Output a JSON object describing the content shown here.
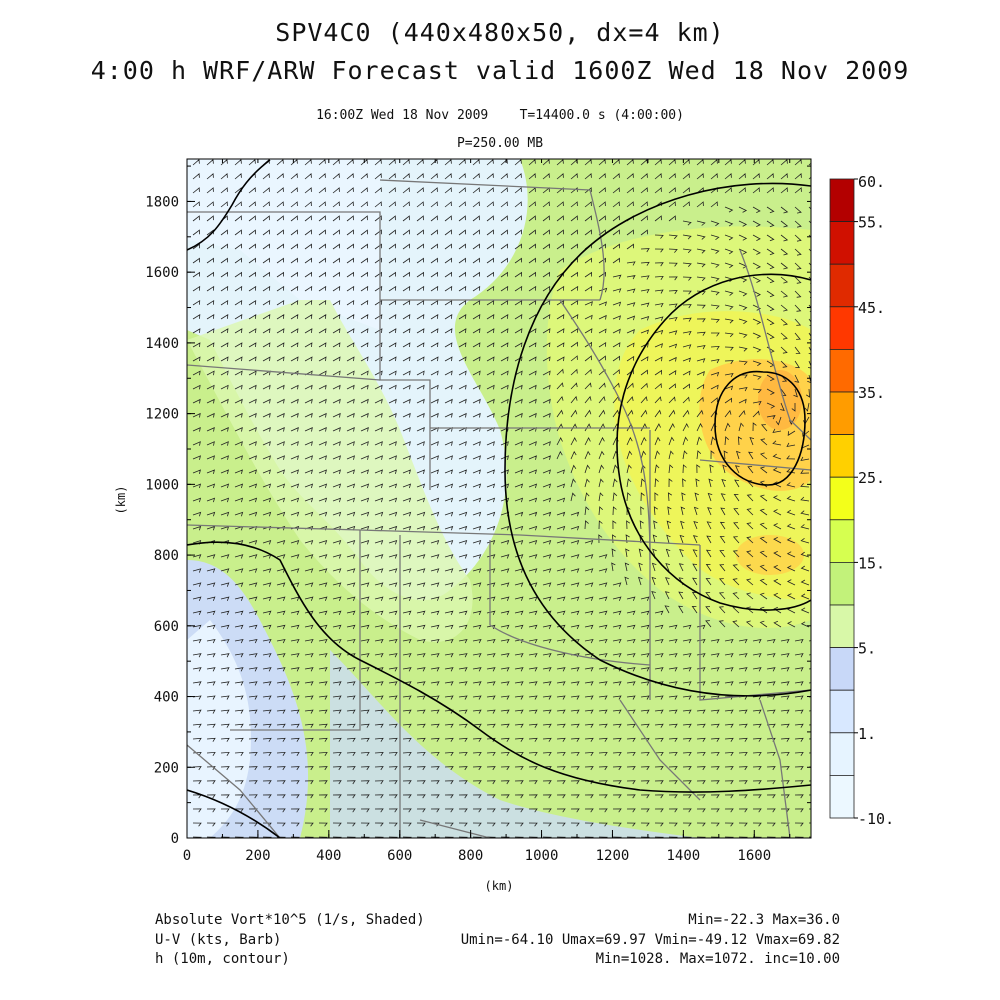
{
  "header": {
    "title_line1": "SPV4C0 (440x480x50, dx=4 km)",
    "title_line2": "4:00 h WRF/ARW Forecast valid 1600Z Wed 18 Nov 2009",
    "valid_time": "16:00Z Wed 18 Nov 2009",
    "model_time": "T=14400.0 s (4:00:00)",
    "level": "P=250.00 MB"
  },
  "axes": {
    "x_label": "(km)",
    "y_label": "(km)",
    "x_ticks": [
      "0",
      "200",
      "400",
      "600",
      "800",
      "1000",
      "1200",
      "1400",
      "1600"
    ],
    "y_ticks": [
      "0",
      "200",
      "400",
      "600",
      "800",
      "1000",
      "1200",
      "1400",
      "1600",
      "1800"
    ],
    "x_range_km": [
      0,
      1760
    ],
    "y_range_km": [
      0,
      1920
    ]
  },
  "colorbar": {
    "labels": [
      "60.",
      "55.",
      "45.",
      "35.",
      "25.",
      "15.",
      "5.",
      "1.",
      "-10."
    ],
    "colors": [
      "#b30000",
      "#d01000",
      "#e02a00",
      "#ff3800",
      "#ff6a00",
      "#ff9c00",
      "#ffd000",
      "#f3ff1a",
      "#d6ff50",
      "#c2f27a",
      "#d8f8a8",
      "#c8d8f8",
      "#d8e8ff",
      "#e6f4ff",
      "#ecf8ff"
    ]
  },
  "legend": {
    "field1_name": "Absolute Vort*10^5 (1/s, Shaded)",
    "field1_stats": "Min=-22.3 Max=36.0",
    "field2_name": "U-V (kts, Barb)",
    "field2_stats": "Umin=-64.10 Umax=69.97 Vmin=-49.12 Vmax=69.82",
    "field3_name": "h (10m, contour)",
    "field3_stats": "Min=1028. Max=1072. inc=10.00"
  }
}
